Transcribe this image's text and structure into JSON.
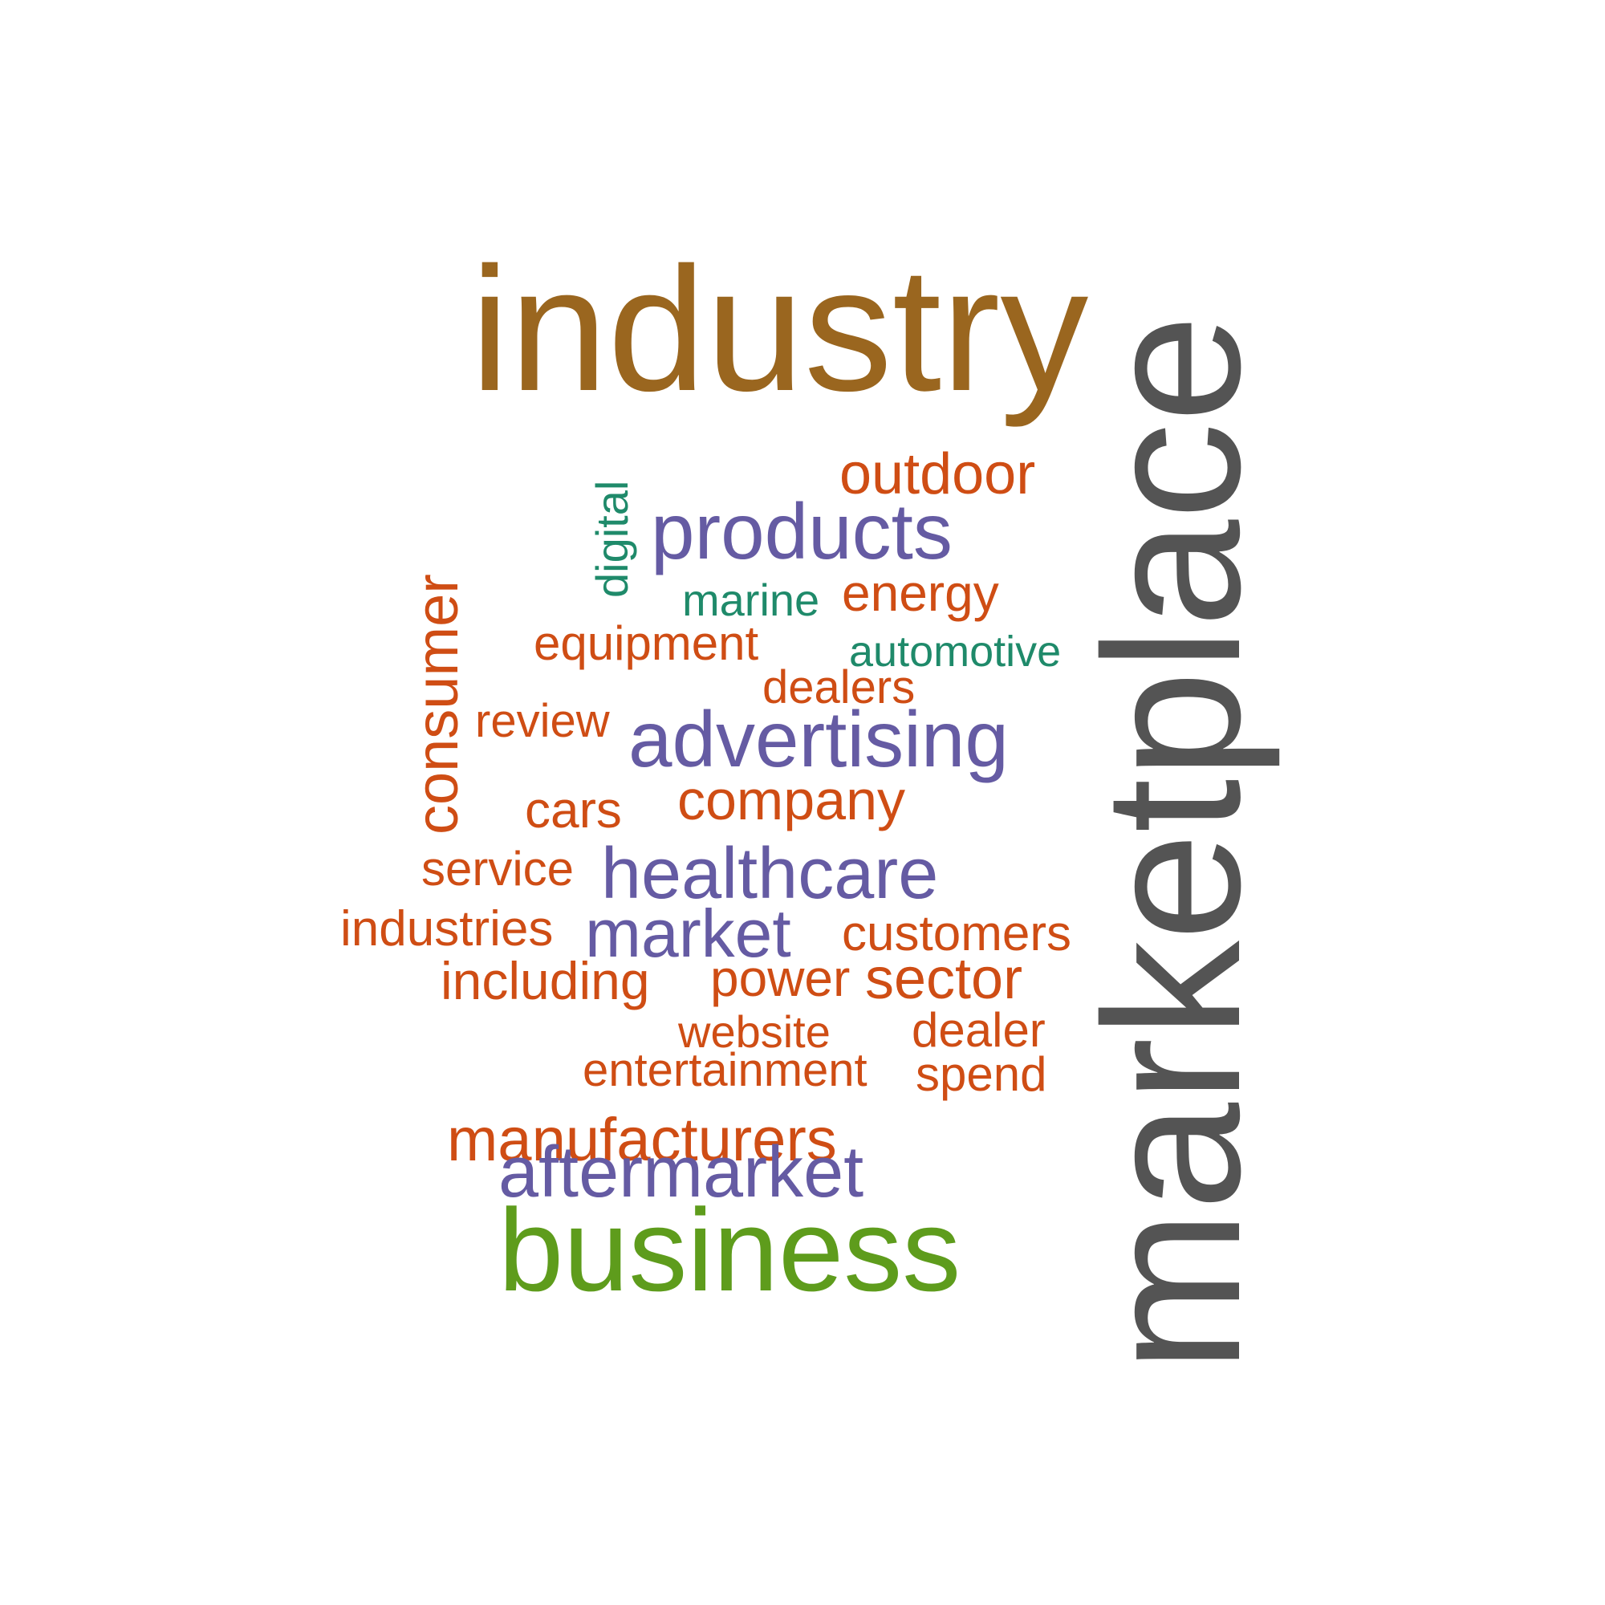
{
  "colors": {
    "brown": "#9a661f",
    "orange": "#cf4d14",
    "purple": "#655ba3",
    "teal": "#1f8a6a",
    "green": "#5e9c1c",
    "gray": "#545454"
  },
  "words": [
    {
      "key": "industry",
      "text": "industry",
      "color": "brown"
    },
    {
      "key": "marketplace",
      "text": "marketplace",
      "color": "gray"
    },
    {
      "key": "outdoor",
      "text": "outdoor",
      "color": "orange"
    },
    {
      "key": "digital",
      "text": "digital",
      "color": "teal"
    },
    {
      "key": "products",
      "text": "products",
      "color": "purple"
    },
    {
      "key": "marine",
      "text": "marine",
      "color": "teal"
    },
    {
      "key": "energy",
      "text": "energy",
      "color": "orange"
    },
    {
      "key": "consumer",
      "text": "consumer",
      "color": "orange"
    },
    {
      "key": "equipment",
      "text": "equipment",
      "color": "orange"
    },
    {
      "key": "automotive",
      "text": "automotive",
      "color": "teal"
    },
    {
      "key": "dealers",
      "text": "dealers",
      "color": "orange"
    },
    {
      "key": "review",
      "text": "review",
      "color": "orange"
    },
    {
      "key": "advertising",
      "text": "advertising",
      "color": "purple"
    },
    {
      "key": "cars",
      "text": "cars",
      "color": "orange"
    },
    {
      "key": "company",
      "text": "company",
      "color": "orange"
    },
    {
      "key": "service",
      "text": "service",
      "color": "orange"
    },
    {
      "key": "healthcare",
      "text": "healthcare",
      "color": "purple"
    },
    {
      "key": "industries",
      "text": "industries",
      "color": "orange"
    },
    {
      "key": "market",
      "text": "market",
      "color": "purple"
    },
    {
      "key": "customers",
      "text": "customers",
      "color": "orange"
    },
    {
      "key": "including",
      "text": "including",
      "color": "orange"
    },
    {
      "key": "power",
      "text": "power",
      "color": "orange"
    },
    {
      "key": "sector",
      "text": "sector",
      "color": "orange"
    },
    {
      "key": "website",
      "text": "website",
      "color": "orange"
    },
    {
      "key": "dealer",
      "text": "dealer",
      "color": "orange"
    },
    {
      "key": "entertainment",
      "text": "entertainment",
      "color": "orange"
    },
    {
      "key": "spend",
      "text": "spend",
      "color": "orange"
    },
    {
      "key": "manufacturers",
      "text": "manufacturers",
      "color": "orange"
    },
    {
      "key": "aftermarket",
      "text": "aftermarket",
      "color": "purple"
    },
    {
      "key": "business",
      "text": "business",
      "color": "green"
    }
  ]
}
